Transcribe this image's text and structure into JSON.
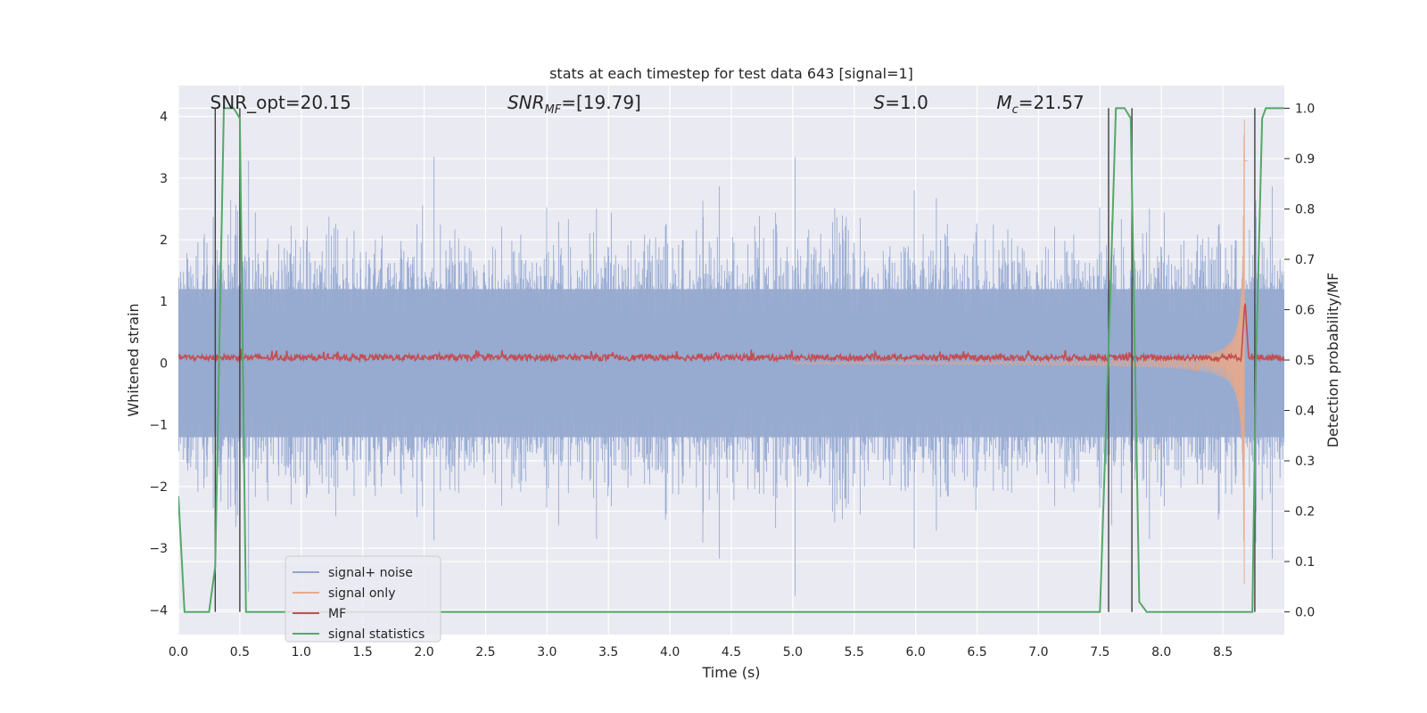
{
  "chart_data": {
    "type": "line",
    "title": "stats at each timestep for test data 643 [signal=1]",
    "xlabel": "Time (s)",
    "ylabel": "Whitened strain",
    "y2label": "Detection probability/MF",
    "xlim": [
      0.0,
      9.0
    ],
    "ylim": [
      -4.4,
      4.5
    ],
    "y2lim": [
      -0.045,
      1.045
    ],
    "xticks": [
      "0.0",
      "0.5",
      "1.0",
      "1.5",
      "2.0",
      "2.5",
      "3.0",
      "3.5",
      "4.0",
      "4.5",
      "5.0",
      "5.5",
      "6.0",
      "6.5",
      "7.0",
      "7.5",
      "8.0",
      "8.5"
    ],
    "yticks": [
      "4",
      "3",
      "2",
      "1",
      "0",
      "−1",
      "−2",
      "−3",
      "−4"
    ],
    "y2ticks": [
      "1.0",
      "0.9",
      "0.8",
      "0.7",
      "0.6",
      "0.5",
      "0.4",
      "0.3",
      "0.2",
      "0.1",
      "0.0"
    ],
    "annotations": [
      {
        "id": "snr-opt",
        "text": "SNR_opt=20.15",
        "at_time": 0.2
      },
      {
        "id": "snr-mf",
        "text": "SNR_MF=[19.79]",
        "at_time": 2.62
      },
      {
        "id": "s-value",
        "text": "S=1.0",
        "at_time": 5.6
      },
      {
        "id": "mc-value",
        "text": "M_c=21.57",
        "at_time": 6.6
      }
    ],
    "legend": {
      "position": "lower-left",
      "entries": [
        {
          "label": "signal+ noise",
          "color": "#8fa5cf"
        },
        {
          "label": "signal only",
          "color": "#e8a98a"
        },
        {
          "label": "MF",
          "color": "#c44e52"
        },
        {
          "label": "signal statistics",
          "color": "#55a868"
        }
      ]
    },
    "series": [
      {
        "name": "signal+ noise",
        "axis": "left",
        "style": "dense-noise",
        "typical_range": [
          -2.0,
          2.0
        ],
        "peak_range": [
          -4.0,
          4.0
        ]
      },
      {
        "name": "signal only",
        "axis": "left",
        "style": "chirp",
        "t_merge": 8.68,
        "peak_amplitude": 4.0
      },
      {
        "name": "MF",
        "axis": "right",
        "style": "baseline-with-peak",
        "baseline": 0.505,
        "peak_time": 8.68,
        "peak_value": 0.62
      },
      {
        "name": "signal statistics",
        "axis": "right",
        "style": "step",
        "x": [
          0.0,
          0.05,
          0.25,
          0.3,
          0.37,
          0.45,
          0.5,
          0.55,
          7.5,
          7.58,
          7.63,
          7.7,
          7.75,
          7.82,
          7.88,
          8.74,
          8.77,
          8.82,
          8.85,
          8.92,
          9.0
        ],
        "y": [
          0.23,
          0.0,
          0.0,
          0.09,
          1.0,
          1.0,
          0.98,
          0.0,
          0.0,
          0.6,
          1.0,
          1.0,
          0.98,
          0.02,
          0.0,
          0.0,
          0.5,
          0.98,
          1.0,
          1.0,
          1.0
        ]
      },
      {
        "name": "detection markers",
        "axis": "right",
        "style": "vlines",
        "x": [
          0.3,
          0.5,
          7.57,
          7.76,
          8.76
        ],
        "from": 0.0,
        "to": 1.0
      }
    ]
  }
}
